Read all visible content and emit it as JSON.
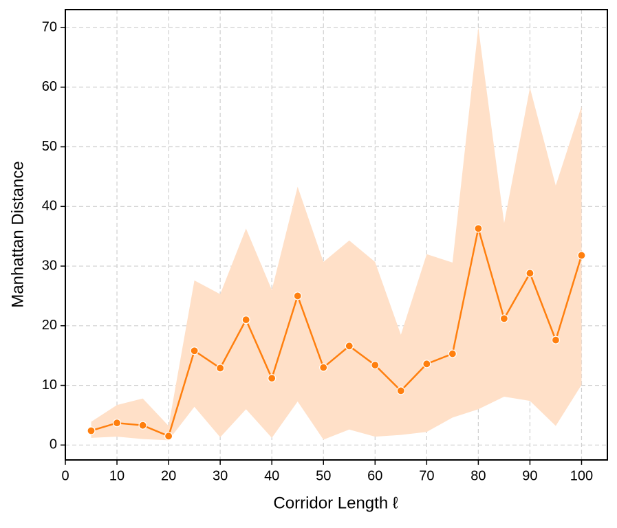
{
  "chart_data": {
    "type": "line",
    "xlabel": "Corridor Length ℓ",
    "ylabel": "Manhattan Distance",
    "x": [
      5,
      10,
      15,
      20,
      25,
      30,
      35,
      40,
      45,
      50,
      55,
      60,
      65,
      70,
      75,
      80,
      85,
      90,
      95,
      100
    ],
    "series": [
      {
        "color": "#ff7f0e",
        "band_color": "#ffe0c8",
        "values": [
          2.4,
          3.7,
          3.3,
          1.5,
          15.8,
          12.9,
          21.0,
          11.2,
          25.0,
          13.0,
          16.6,
          13.4,
          9.1,
          13.6,
          15.3,
          36.3,
          21.2,
          28.8,
          17.6,
          31.8
        ],
        "upper": [
          3.9,
          6.7,
          7.8,
          3.2,
          27.6,
          25.3,
          36.3,
          26.0,
          43.3,
          30.7,
          34.3,
          30.7,
          18.5,
          32.0,
          30.6,
          70.0,
          37.2,
          59.9,
          43.5,
          56.8
        ],
        "lower": [
          1.2,
          1.4,
          1.0,
          0.8,
          6.4,
          1.3,
          6.0,
          1.2,
          7.3,
          0.9,
          2.6,
          1.4,
          1.7,
          2.2,
          4.6,
          6.0,
          8.1,
          7.4,
          3.2,
          10.1
        ]
      }
    ],
    "xlim": [
      0,
      105
    ],
    "ylim": [
      -2.5,
      73
    ],
    "xticks": [
      0,
      10,
      20,
      30,
      40,
      50,
      60,
      70,
      80,
      90,
      100
    ],
    "yticks": [
      0,
      10,
      20,
      30,
      40,
      50,
      60,
      70
    ],
    "grid": true
  }
}
